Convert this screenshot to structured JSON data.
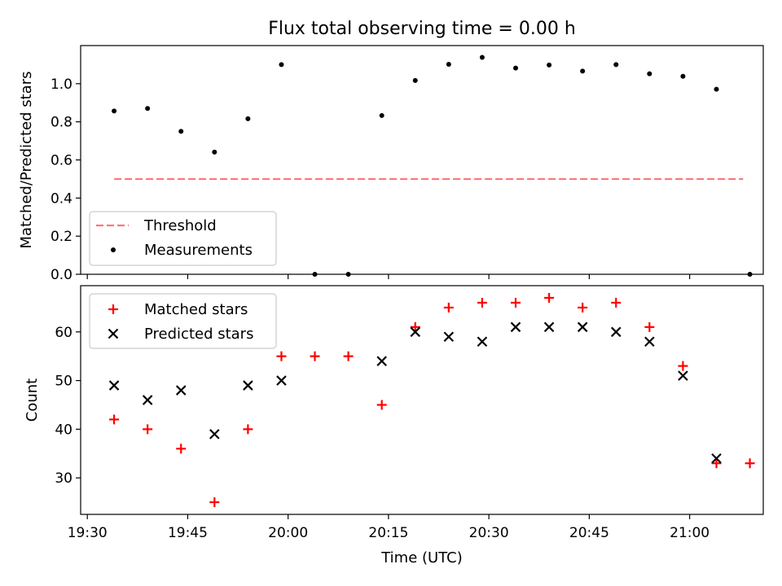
{
  "chart_data": [
    {
      "type": "scatter",
      "title": "Flux total observing time = 0.00 h",
      "xlabel": "",
      "ylabel": "Matched/Predicted stars",
      "xlim": [
        "19:29",
        "21:11"
      ],
      "ylim": [
        0,
        1.2
      ],
      "yticks": [
        "0.0",
        "0.2",
        "0.4",
        "0.6",
        "0.8",
        "1.0"
      ],
      "legend_position": "lower-left",
      "series": [
        {
          "name": "Threshold",
          "style": "dashed-line",
          "color": "#ff7777",
          "x": [
            "19:34",
            "21:08"
          ],
          "y": [
            0.5,
            0.5
          ]
        },
        {
          "name": "Measurements",
          "style": "dot",
          "color": "#000000",
          "x": [
            "19:34",
            "19:39",
            "19:44",
            "19:49",
            "19:54",
            "19:59",
            "20:04",
            "20:09",
            "20:14",
            "20:19",
            "20:24",
            "20:29",
            "20:34",
            "20:39",
            "20:44",
            "20:49",
            "20:54",
            "20:59",
            "21:04",
            "21:09"
          ],
          "y": [
            0.857,
            0.87,
            0.75,
            0.641,
            0.816,
            1.1,
            0.0,
            0.0,
            0.833,
            1.017,
            1.102,
            1.138,
            1.082,
            1.098,
            1.066,
            1.1,
            1.052,
            1.039,
            0.971,
            0.0
          ]
        }
      ]
    },
    {
      "type": "scatter",
      "title": "",
      "xlabel": "Time (UTC)",
      "ylabel": "Count",
      "xlim": [
        "19:29",
        "21:11"
      ],
      "ylim": [
        22.5,
        69.5
      ],
      "yticks": [
        "30",
        "40",
        "50",
        "60"
      ],
      "xticks": [
        "19:30",
        "19:45",
        "20:00",
        "20:15",
        "20:30",
        "20:45",
        "21:00"
      ],
      "legend_position": "upper-left",
      "series": [
        {
          "name": "Matched stars",
          "marker": "plus",
          "color": "#ff0000",
          "x": [
            "19:34",
            "19:39",
            "19:44",
            "19:49",
            "19:54",
            "19:59",
            "20:04",
            "20:09",
            "20:14",
            "20:19",
            "20:24",
            "20:29",
            "20:34",
            "20:39",
            "20:44",
            "20:49",
            "20:54",
            "20:59",
            "21:04",
            "21:09"
          ],
          "y": [
            42,
            40,
            36,
            25,
            40,
            55,
            55,
            55,
            45,
            61,
            65,
            66,
            66,
            67,
            65,
            66,
            61,
            53,
            33,
            33
          ]
        },
        {
          "name": "Predicted stars",
          "marker": "x",
          "color": "#000000",
          "x": [
            "19:34",
            "19:39",
            "19:44",
            "19:49",
            "19:54",
            "19:59",
            "20:14",
            "20:19",
            "20:24",
            "20:29",
            "20:34",
            "20:39",
            "20:44",
            "20:49",
            "20:54",
            "20:59",
            "21:04"
          ],
          "y": [
            49,
            46,
            48,
            39,
            49,
            50,
            54,
            60,
            59,
            58,
            61,
            61,
            61,
            60,
            58,
            51,
            34
          ]
        }
      ]
    }
  ]
}
